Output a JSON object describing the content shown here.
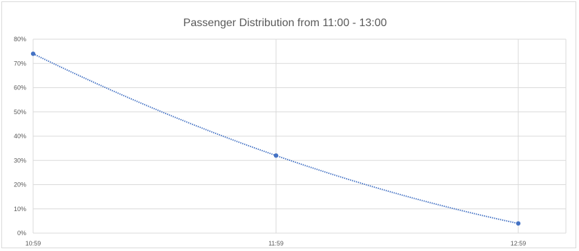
{
  "chart_data": {
    "type": "scatter",
    "title": "Passenger Distribution from 11:00 - 13:00",
    "xlabel": "",
    "ylabel": "",
    "x": [
      "10:59",
      "11:59",
      "12:59"
    ],
    "series": [
      {
        "values": [
          74,
          32,
          4
        ]
      }
    ],
    "trendline": {
      "style": "dotted",
      "type": "polynomial"
    },
    "y_tick_labels": [
      "0%",
      "10%",
      "20%",
      "30%",
      "40%",
      "50%",
      "60%",
      "70%",
      "80%"
    ],
    "ylim": [
      0,
      80
    ],
    "grid": true,
    "legend": "none",
    "colors": {
      "series": "#4472c4",
      "grid": "#d9d9d9",
      "text": "#595959"
    }
  }
}
